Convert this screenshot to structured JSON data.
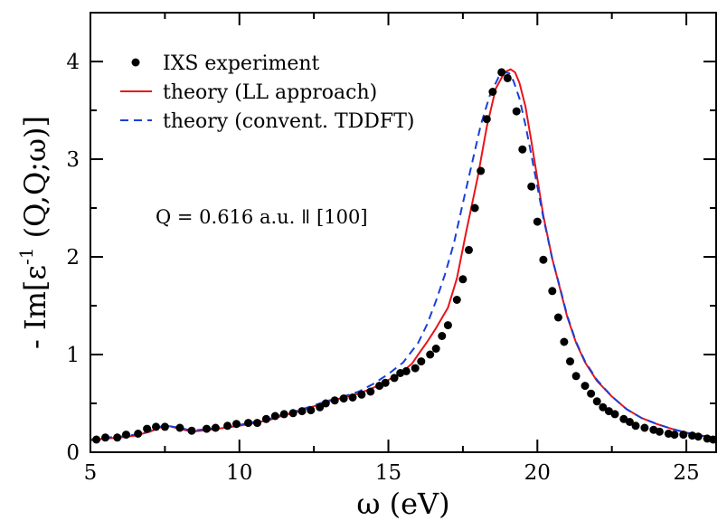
{
  "chart_data": {
    "type": "line",
    "title": "",
    "xlabel": "ω (eV)",
    "ylabel_prefix": "- Im[ε",
    "ylabel_sup": "-1",
    "ylabel_suffix": " (Q,Q;ω)]",
    "xlim": [
      5,
      26
    ],
    "ylim": [
      0,
      4.5
    ],
    "x_ticks": [
      5,
      10,
      15,
      20,
      25
    ],
    "y_ticks": [
      0,
      1,
      2,
      3,
      4
    ],
    "x_tick_labels": [
      "5",
      "10",
      "15",
      "20",
      "25"
    ],
    "y_tick_labels": [
      "0",
      "1",
      "2",
      "3",
      "4"
    ],
    "grid": false,
    "legend_position": "top-left",
    "annotation": "Q = 0.616 a.u. ǁ [100]",
    "series": [
      {
        "name": "IXS experiment",
        "style": "points",
        "color": "#000000",
        "x": [
          5.2,
          5.5,
          5.9,
          6.2,
          6.6,
          6.9,
          7.2,
          7.5,
          8.0,
          8.4,
          8.9,
          9.2,
          9.6,
          9.9,
          10.3,
          10.6,
          10.9,
          11.2,
          11.5,
          11.8,
          12.1,
          12.4,
          12.7,
          12.9,
          13.2,
          13.5,
          13.8,
          14.1,
          14.4,
          14.7,
          14.9,
          15.2,
          15.4,
          15.6,
          15.9,
          16.1,
          16.4,
          16.6,
          16.8,
          17.0,
          17.3,
          17.5,
          17.7,
          17.9,
          18.1,
          18.3,
          18.5,
          18.8,
          19.0,
          19.3,
          19.5,
          19.8,
          20.0,
          20.2,
          20.5,
          20.7,
          20.9,
          21.1,
          21.3,
          21.6,
          21.8,
          22.0,
          22.2,
          22.4,
          22.6,
          22.9,
          23.1,
          23.3,
          23.6,
          23.9,
          24.1,
          24.4,
          24.6,
          24.9,
          25.2,
          25.4,
          25.7,
          25.9
        ],
        "y": [
          0.13,
          0.15,
          0.15,
          0.18,
          0.19,
          0.24,
          0.26,
          0.26,
          0.25,
          0.22,
          0.24,
          0.25,
          0.27,
          0.29,
          0.3,
          0.3,
          0.34,
          0.37,
          0.39,
          0.4,
          0.42,
          0.43,
          0.46,
          0.5,
          0.53,
          0.55,
          0.56,
          0.59,
          0.62,
          0.68,
          0.71,
          0.76,
          0.81,
          0.83,
          0.86,
          0.93,
          1.0,
          1.06,
          1.19,
          1.3,
          1.56,
          1.77,
          2.07,
          2.5,
          2.88,
          3.41,
          3.69,
          3.89,
          3.83,
          3.49,
          3.1,
          2.72,
          2.36,
          1.97,
          1.65,
          1.38,
          1.13,
          0.93,
          0.78,
          0.68,
          0.6,
          0.52,
          0.46,
          0.42,
          0.39,
          0.34,
          0.31,
          0.27,
          0.25,
          0.23,
          0.21,
          0.19,
          0.18,
          0.18,
          0.17,
          0.16,
          0.14,
          0.13
        ]
      },
      {
        "name": "theory (LL approach)",
        "style": "solid",
        "color": "#e8141a",
        "x": [
          5.0,
          5.5,
          6.0,
          6.5,
          7.0,
          7.3,
          7.6,
          8.0,
          8.4,
          9.0,
          9.5,
          10.0,
          10.5,
          11.0,
          11.5,
          12.0,
          12.5,
          13.0,
          13.5,
          14.0,
          14.5,
          15.0,
          15.3,
          15.5,
          15.8,
          16.0,
          16.3,
          16.6,
          17.0,
          17.3,
          17.6,
          18.0,
          18.3,
          18.6,
          18.9,
          19.1,
          19.25,
          19.4,
          19.6,
          19.8,
          20.0,
          20.2,
          20.5,
          20.8,
          21.0,
          21.3,
          21.6,
          22.0,
          22.5,
          23.0,
          23.5,
          24.0,
          24.5,
          25.0,
          25.5,
          26.0
        ],
        "y": [
          0.12,
          0.14,
          0.15,
          0.17,
          0.21,
          0.25,
          0.27,
          0.24,
          0.21,
          0.23,
          0.25,
          0.27,
          0.3,
          0.33,
          0.38,
          0.42,
          0.47,
          0.52,
          0.56,
          0.6,
          0.66,
          0.74,
          0.79,
          0.83,
          0.91,
          1.0,
          1.13,
          1.27,
          1.48,
          1.78,
          2.24,
          2.82,
          3.33,
          3.72,
          3.89,
          3.92,
          3.89,
          3.78,
          3.54,
          3.18,
          2.8,
          2.42,
          1.98,
          1.63,
          1.39,
          1.12,
          0.92,
          0.73,
          0.57,
          0.44,
          0.35,
          0.29,
          0.24,
          0.2,
          0.17,
          0.15
        ]
      },
      {
        "name": "theory (convent. TDDFT)",
        "style": "dashed",
        "color": "#1a3fd6",
        "x": [
          5.0,
          5.5,
          6.0,
          6.5,
          7.0,
          7.3,
          7.6,
          8.0,
          8.4,
          9.0,
          9.5,
          10.0,
          10.5,
          11.0,
          11.5,
          12.0,
          12.5,
          13.0,
          13.5,
          14.0,
          14.5,
          15.0,
          15.5,
          16.0,
          16.3,
          16.6,
          16.9,
          17.2,
          17.5,
          17.8,
          18.1,
          18.4,
          18.7,
          18.9,
          19.05,
          19.2,
          19.4,
          19.6,
          19.8,
          20.0,
          20.2,
          20.5,
          20.8,
          21.0,
          21.3,
          21.6,
          22.0,
          22.5,
          23.0,
          23.5,
          24.0,
          24.5,
          25.0,
          25.5,
          26.0
        ],
        "y": [
          0.13,
          0.15,
          0.16,
          0.18,
          0.22,
          0.26,
          0.27,
          0.25,
          0.22,
          0.24,
          0.26,
          0.28,
          0.31,
          0.34,
          0.39,
          0.43,
          0.48,
          0.53,
          0.57,
          0.62,
          0.7,
          0.8,
          0.92,
          1.12,
          1.31,
          1.55,
          1.82,
          2.14,
          2.55,
          2.95,
          3.35,
          3.65,
          3.84,
          3.89,
          3.88,
          3.8,
          3.62,
          3.35,
          3.04,
          2.72,
          2.4,
          1.98,
          1.64,
          1.4,
          1.13,
          0.93,
          0.74,
          0.57,
          0.44,
          0.35,
          0.29,
          0.24,
          0.2,
          0.17,
          0.15
        ]
      }
    ]
  }
}
